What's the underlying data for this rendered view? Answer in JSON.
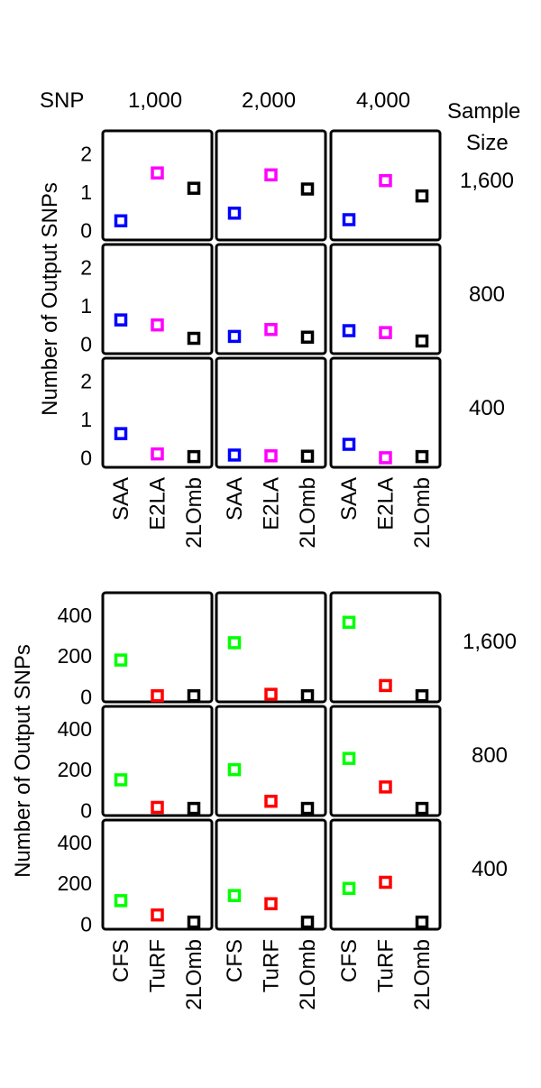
{
  "header": {
    "snp_label": "SNP",
    "sample_size_label_line1": "Sample",
    "sample_size_label_line2": "Size",
    "columns": [
      "1,000",
      "2,000",
      "4,000"
    ]
  },
  "colors": {
    "SAA": "#0000ff",
    "E2LA": "#ff00ff",
    "2LOmb": "#000000",
    "CFS": "#00ff00",
    "TuRF": "#ff0000"
  },
  "chart_data": [
    {
      "type": "scatter",
      "ylabel": "Number of Output SNPs",
      "categories": [
        "SAA",
        "E2LA",
        "2LOmb"
      ],
      "yticks": [
        "0",
        "1",
        "2"
      ],
      "ylim": [
        -0.25,
        2.6
      ],
      "columns": [
        "1,000",
        "2,000",
        "4,000"
      ],
      "rows": [
        {
          "sample_size": "1,600",
          "values": [
            [
              0.25,
              1.5,
              1.1
            ],
            [
              0.45,
              1.45,
              1.08
            ],
            [
              0.28,
              1.3,
              0.9
            ]
          ]
        },
        {
          "sample_size": "800",
          "values": [
            [
              0.63,
              0.5,
              0.15
            ],
            [
              0.2,
              0.38,
              0.18
            ],
            [
              0.35,
              0.3,
              0.08
            ]
          ]
        },
        {
          "sample_size": "400",
          "values": [
            [
              0.63,
              0.1,
              0.03
            ],
            [
              0.07,
              0.05,
              0.04
            ],
            [
              0.35,
              0.0,
              0.03
            ]
          ]
        }
      ]
    },
    {
      "type": "scatter",
      "ylabel": "Number of Output SNPs",
      "categories": [
        "CFS",
        "TuRF",
        "2LOmb"
      ],
      "yticks": [
        "0",
        "200",
        "400"
      ],
      "ylim": [
        -25,
        510
      ],
      "columns": [
        "1,000",
        "2,000",
        "4,000"
      ],
      "rows": [
        {
          "sample_size": "1,600",
          "values": [
            [
              180,
              5,
              5
            ],
            [
              265,
              12,
              5
            ],
            [
              365,
              55,
              5
            ]
          ]
        },
        {
          "sample_size": "800",
          "values": [
            [
              150,
              15,
              10
            ],
            [
              200,
              45,
              10
            ],
            [
              255,
              115,
              10
            ]
          ]
        },
        {
          "sample_size": "400",
          "values": [
            [
              115,
              45,
              10
            ],
            [
              140,
              100,
              10
            ],
            [
              175,
              205,
              10
            ]
          ]
        }
      ]
    }
  ]
}
